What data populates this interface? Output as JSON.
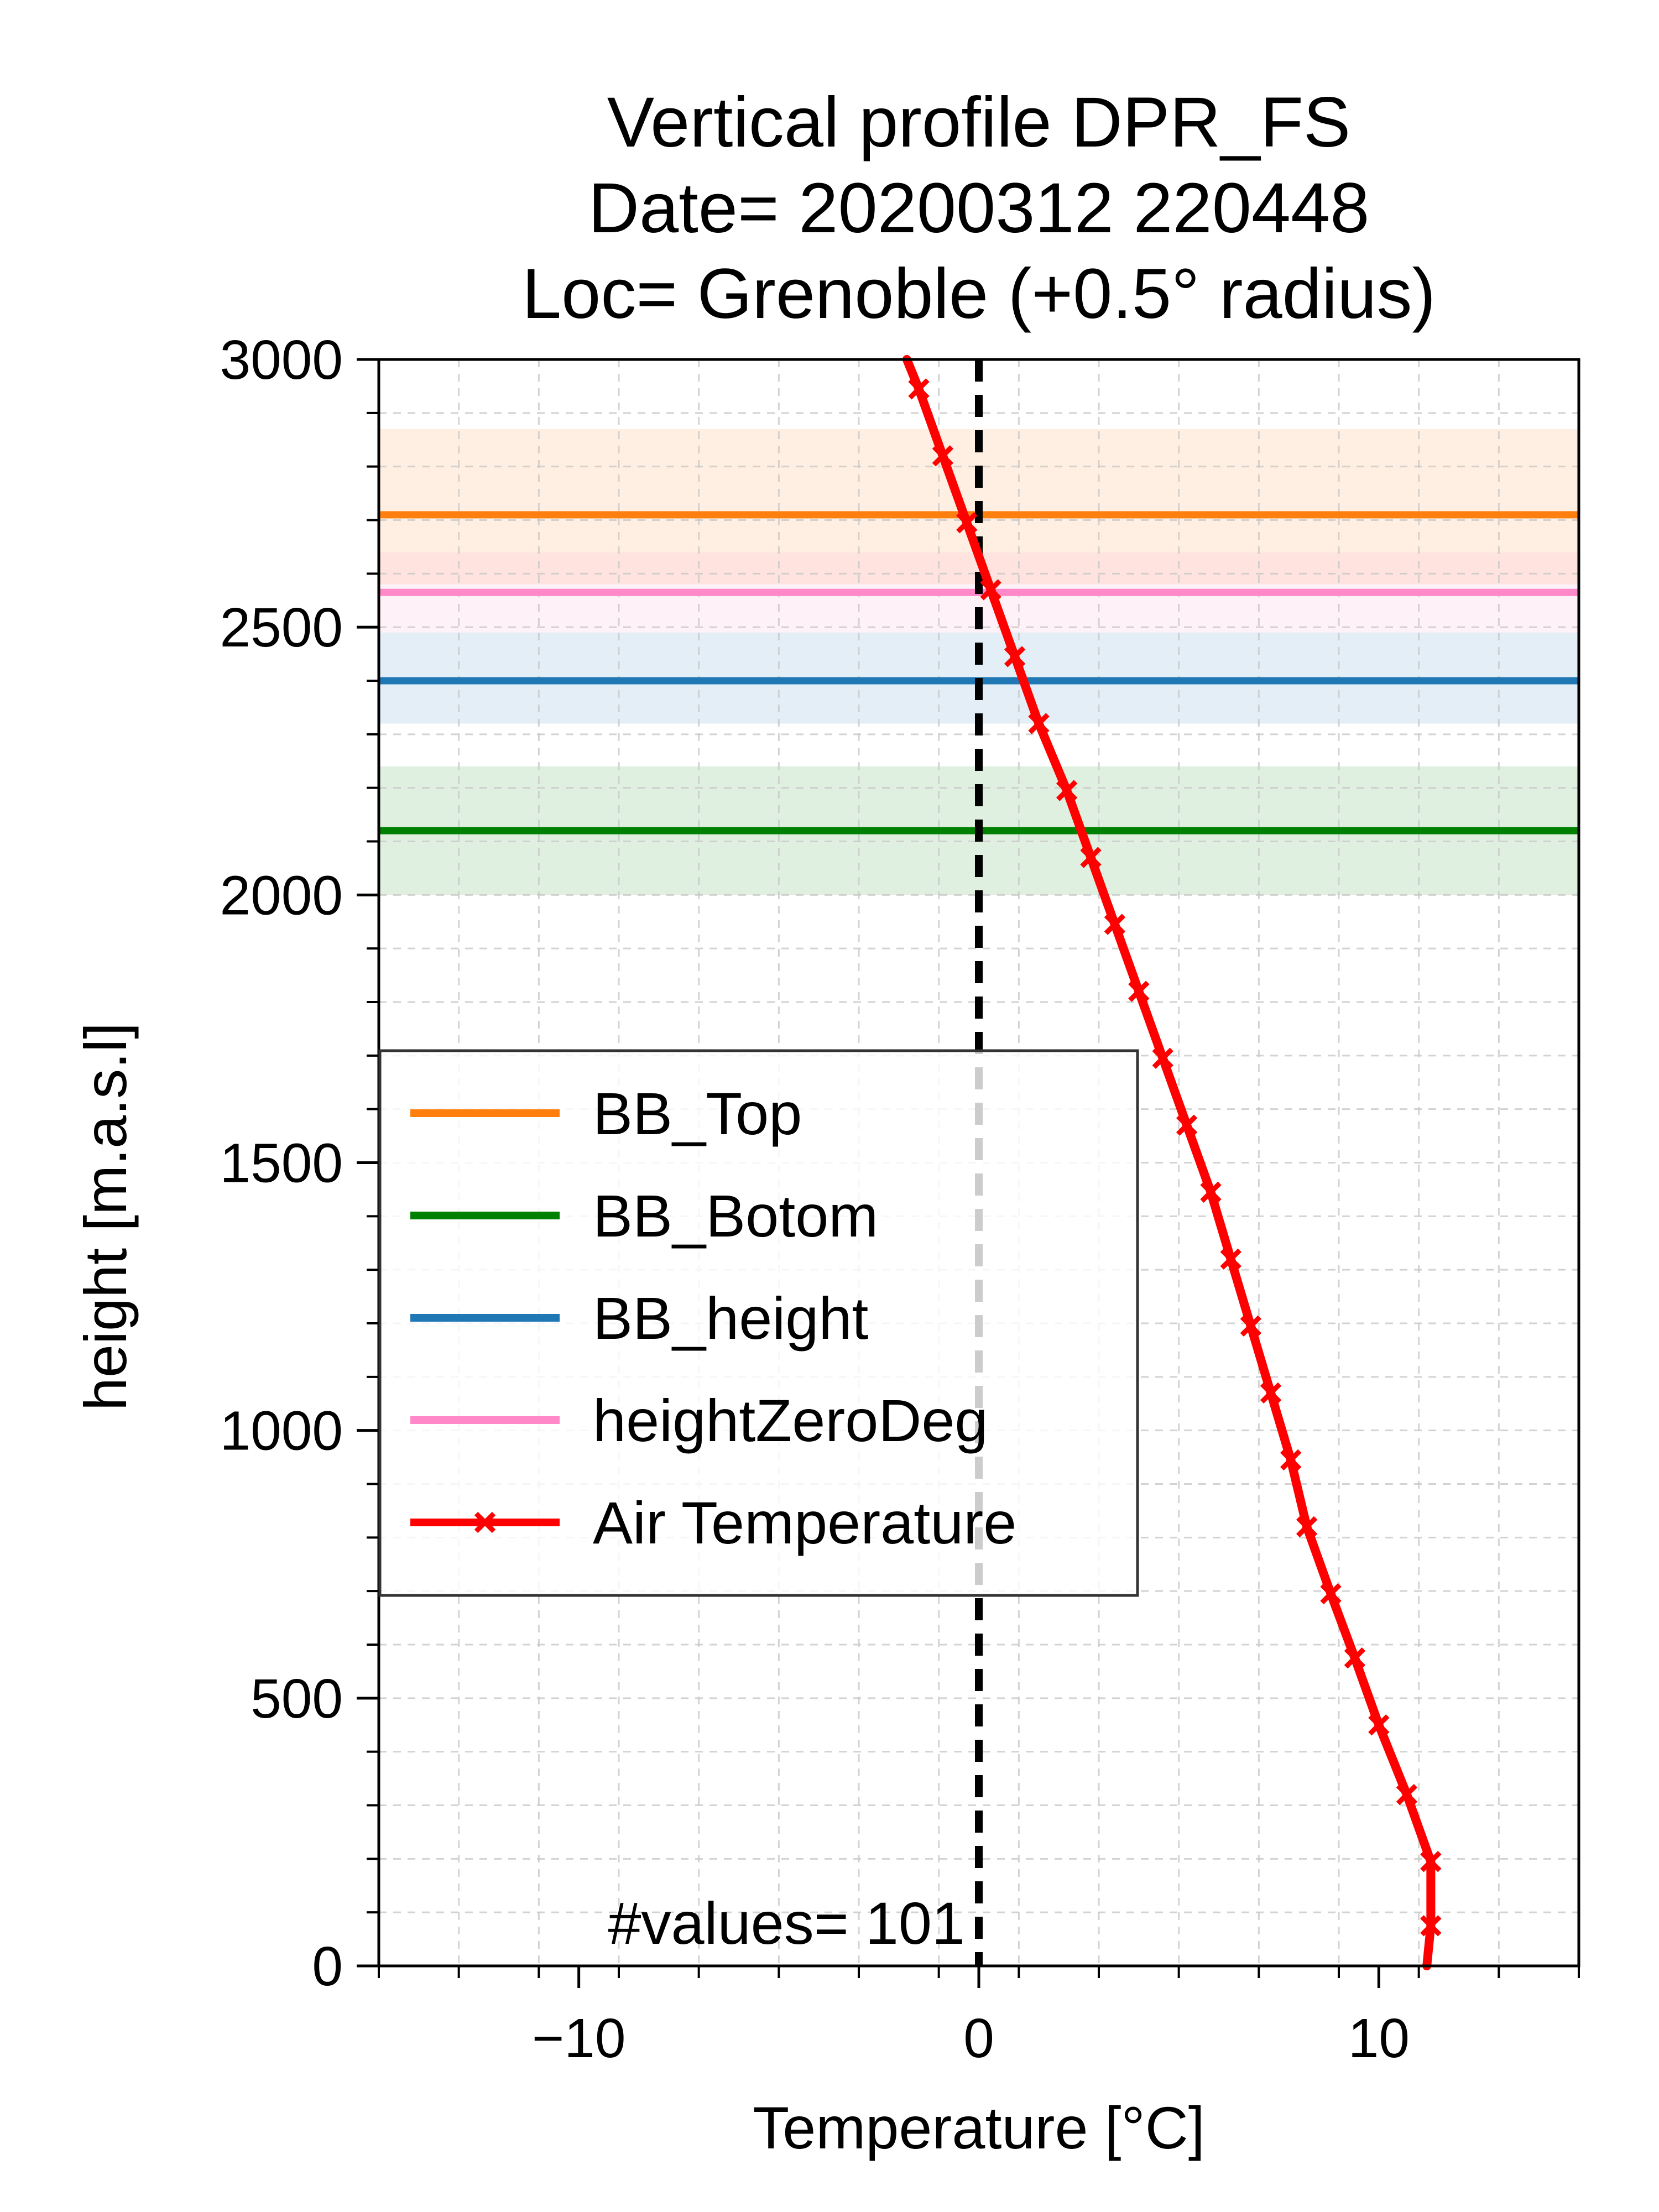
{
  "chart_data": {
    "type": "line",
    "title_lines": [
      "Vertical profile DPR_FS",
      "Date= 20200312 220448",
      "Loc= Grenoble (+0.5° radius)"
    ],
    "xlabel": "Temperature [°C]",
    "ylabel": "height [m.a.s.l]",
    "xlim": [
      -15,
      15
    ],
    "ylim": [
      0,
      3000
    ],
    "xticks": [
      -10,
      0,
      10
    ],
    "xtick_labels": [
      "−10",
      "0",
      "10"
    ],
    "yticks": [
      0,
      500,
      1000,
      1500,
      2000,
      2500,
      3000
    ],
    "ytick_labels": [
      "0",
      "500",
      "1000",
      "1500",
      "2000",
      "2500",
      "3000"
    ],
    "grid": true,
    "legend_position": "center-left",
    "annotation": "#values= 101",
    "zero_line": {
      "x": 0,
      "color": "#000000",
      "style": "dashed"
    },
    "hlines": [
      {
        "name": "BB_Top",
        "y": 2710,
        "band": [
          2580,
          2870
        ],
        "color": "#ff7f0e"
      },
      {
        "name": "BB_Botom",
        "y": 2120,
        "band": [
          2000,
          2240
        ],
        "color": "#008000"
      },
      {
        "name": "BB_height",
        "y": 2400,
        "band": [
          2320,
          2490
        ],
        "color": "#1f77b4"
      },
      {
        "name": "heightZeroDeg",
        "y": 2565,
        "band": [
          2490,
          2640
        ],
        "color": "#ff88c8"
      }
    ],
    "series": [
      {
        "name": "Air Temperature",
        "color": "#ff0000",
        "marker": "x",
        "x": [
          11.2,
          11.3,
          11.3,
          10.7,
          10.0,
          9.4,
          8.8,
          8.2,
          7.8,
          7.3,
          6.8,
          6.3,
          5.8,
          5.2,
          4.6,
          4.0,
          3.4,
          2.8,
          2.2,
          1.5,
          0.9,
          0.3,
          -0.3,
          -0.9,
          -1.5,
          -1.8
        ],
        "y": [
          0,
          75,
          195,
          320,
          450,
          575,
          695,
          820,
          945,
          1070,
          1195,
          1320,
          1445,
          1570,
          1695,
          1820,
          1945,
          2070,
          2195,
          2320,
          2445,
          2570,
          2695,
          2820,
          2945,
          3000
        ],
        "markers_x": [
          11.3,
          11.3,
          10.7,
          10.0,
          9.4,
          8.8,
          8.2,
          7.8,
          7.3,
          6.8,
          6.3,
          5.8,
          5.2,
          4.6,
          4.0,
          3.4,
          2.8,
          2.2,
          1.5,
          0.9,
          0.3,
          -0.3,
          -0.9,
          -1.5
        ],
        "markers_y": [
          75,
          195,
          320,
          450,
          575,
          695,
          820,
          945,
          1070,
          1195,
          1320,
          1445,
          1570,
          1695,
          1820,
          1945,
          2070,
          2195,
          2320,
          2445,
          2570,
          2695,
          2820,
          2945
        ]
      }
    ],
    "legend_order": [
      "BB_Top",
      "BB_Botom",
      "BB_height",
      "heightZeroDeg",
      "Air Temperature"
    ]
  }
}
